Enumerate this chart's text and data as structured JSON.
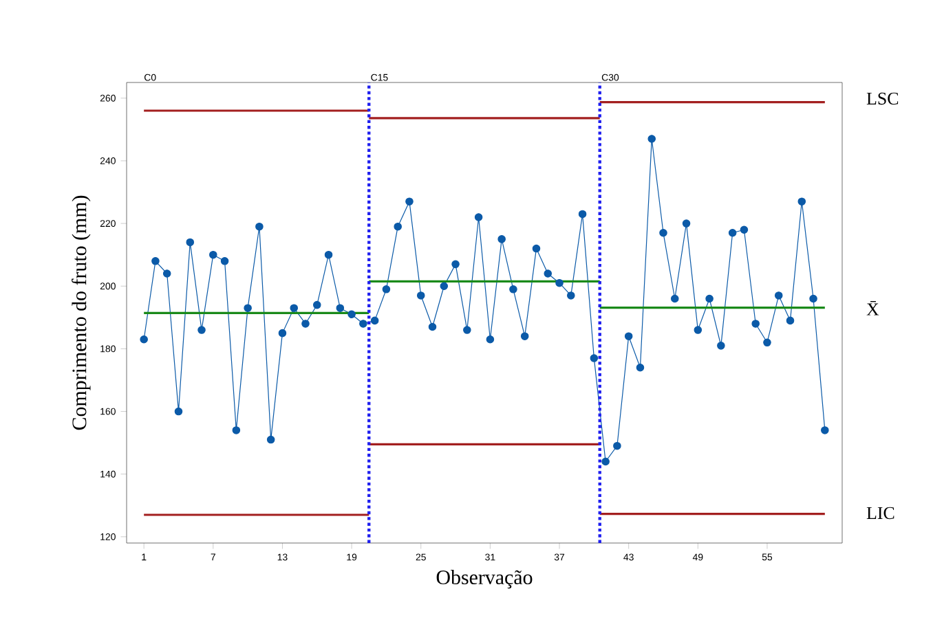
{
  "chart_data": {
    "type": "line",
    "xlabel": "Observação",
    "ylabel": "Comprimento do fruto (mm)",
    "xlim": [
      -0.5,
      61.5
    ],
    "ylim": [
      118,
      265
    ],
    "xticks": [
      1,
      7,
      13,
      19,
      25,
      31,
      37,
      43,
      49,
      55
    ],
    "yticks": [
      120,
      140,
      160,
      180,
      200,
      220,
      240,
      260
    ],
    "grid": false,
    "series": [
      {
        "color": "#0b5aa8",
        "marker": "circle",
        "x": [
          1,
          2,
          3,
          4,
          5,
          6,
          7,
          8,
          9,
          10,
          11,
          12,
          13,
          14,
          15,
          16,
          17,
          18,
          19,
          20,
          21,
          22,
          23,
          24,
          25,
          26,
          27,
          28,
          29,
          30,
          31,
          32,
          33,
          34,
          35,
          36,
          37,
          38,
          39,
          40,
          41,
          42,
          43,
          44,
          45,
          46,
          47,
          48,
          49,
          50,
          51,
          52,
          53,
          54,
          55,
          56,
          57,
          58,
          59,
          60
        ],
        "values": [
          183,
          208,
          204,
          160,
          214,
          186,
          210,
          208,
          154,
          193,
          219,
          151,
          185,
          193,
          188,
          194,
          210,
          193,
          191,
          188,
          189,
          199,
          219,
          227,
          197,
          187,
          200,
          207,
          186,
          222,
          183,
          215,
          199,
          184,
          212,
          204,
          201,
          197,
          223,
          177,
          144,
          149,
          184,
          174,
          247,
          217,
          196,
          220,
          186,
          196,
          181,
          217,
          218,
          188,
          182,
          197,
          189,
          227,
          196,
          154
        ]
      },
      {
        "color": "#a31f1f",
        "marker": "none",
        "x": [
          1,
          20.5
        ],
        "values": [
          256,
          256
        ]
      },
      {
        "color": "#a31f1f",
        "marker": "none",
        "x": [
          1,
          20.5
        ],
        "values": [
          127,
          127
        ]
      },
      {
        "color": "#1a8a1a",
        "marker": "none",
        "x": [
          1,
          20.5
        ],
        "values": [
          191.4,
          191.4
        ]
      },
      {
        "color": "#a31f1f",
        "marker": "none",
        "x": [
          20.5,
          40.5
        ],
        "values": [
          253.6,
          253.6
        ]
      },
      {
        "color": "#a31f1f",
        "marker": "none",
        "x": [
          20.5,
          40.5
        ],
        "values": [
          149.5,
          149.5
        ]
      },
      {
        "color": "#1a8a1a",
        "marker": "none",
        "x": [
          20.5,
          40.5
        ],
        "values": [
          201.5,
          201.5
        ]
      },
      {
        "color": "#a31f1f",
        "marker": "none",
        "x": [
          40.5,
          60
        ],
        "values": [
          258.7,
          258.7
        ]
      },
      {
        "color": "#a31f1f",
        "marker": "none",
        "x": [
          40.5,
          60
        ],
        "values": [
          127.3,
          127.3
        ]
      },
      {
        "color": "#1a8a1a",
        "marker": "none",
        "x": [
          40.5,
          60
        ],
        "values": [
          193.1,
          193.1
        ]
      }
    ],
    "ref_lines": [
      {
        "axis": "x",
        "value": 20.5,
        "label": "C15",
        "color": "#1f1fef",
        "line_style": "dotted"
      },
      {
        "axis": "x",
        "value": 40.5,
        "label": "C30",
        "color": "#1f1fef",
        "line_style": "dotted"
      }
    ],
    "annotations": [
      "C0",
      "LSC",
      "X̄",
      "LIC"
    ]
  }
}
